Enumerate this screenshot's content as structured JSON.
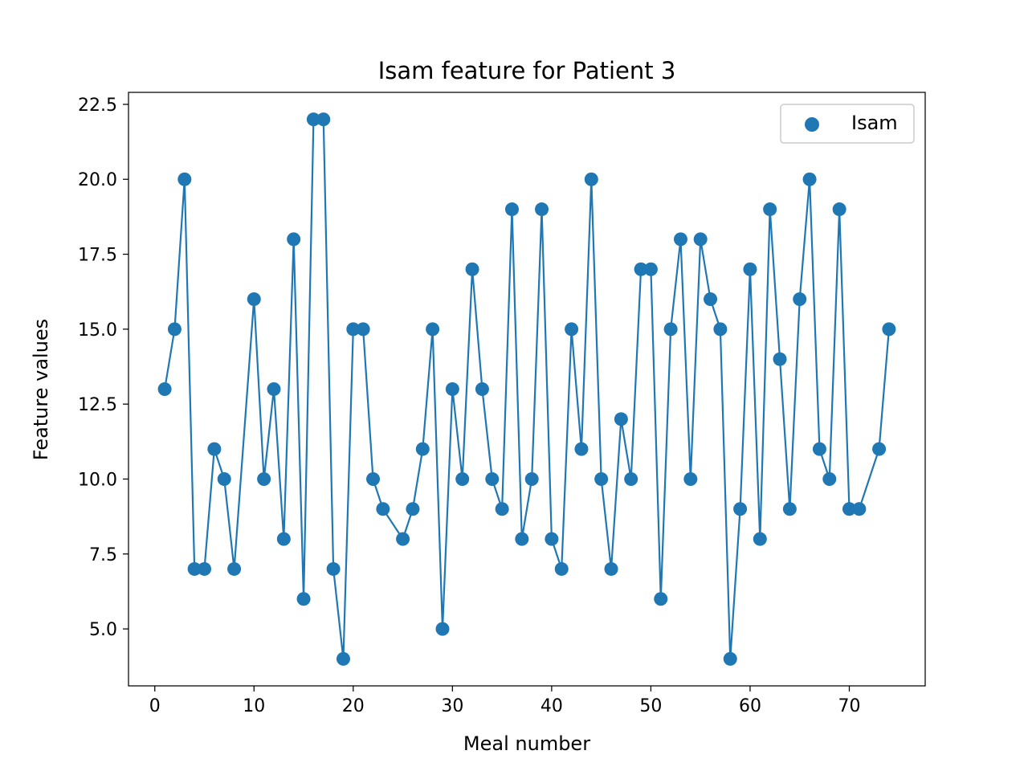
{
  "chart_data": {
    "type": "line",
    "title": "Isam feature for Patient 3",
    "xlabel": "Meal number",
    "ylabel": "Feature values",
    "xlim": [
      -2.65,
      77.65
    ],
    "ylim": [
      3.1,
      22.9
    ],
    "x_ticks": [
      0,
      10,
      20,
      30,
      40,
      50,
      60,
      70
    ],
    "x_tick_labels": [
      "0",
      "10",
      "20",
      "30",
      "40",
      "50",
      "60",
      "70"
    ],
    "y_ticks": [
      5.0,
      7.5,
      10.0,
      12.5,
      15.0,
      17.5,
      20.0,
      22.5
    ],
    "y_tick_labels": [
      "5.0",
      "7.5",
      "10.0",
      "12.5",
      "15.0",
      "17.5",
      "20.0",
      "22.5"
    ],
    "grid": false,
    "legend_position": "top-right",
    "series": [
      {
        "name": "Isam",
        "color": "#1f77b4",
        "marker": "circle",
        "line": true,
        "x": [
          1,
          2,
          3,
          4,
          5,
          6,
          7,
          8,
          10,
          11,
          12,
          13,
          14,
          15,
          16,
          17,
          18,
          19,
          20,
          21,
          22,
          23,
          25,
          26,
          27,
          28,
          29,
          30,
          31,
          32,
          33,
          34,
          35,
          36,
          37,
          38,
          39,
          40,
          41,
          42,
          43,
          44,
          45,
          46,
          47,
          48,
          49,
          50,
          51,
          52,
          53,
          54,
          55,
          56,
          57,
          58,
          59,
          60,
          61,
          62,
          63,
          64,
          65,
          66,
          67,
          68,
          69,
          70,
          71,
          73,
          74
        ],
        "y": [
          13,
          15,
          20,
          7,
          7,
          11,
          10,
          7,
          16,
          10,
          13,
          8,
          18,
          6,
          22,
          22,
          7,
          4,
          15,
          15,
          10,
          9,
          8,
          9,
          11,
          15,
          5,
          13,
          10,
          17,
          13,
          10,
          9,
          19,
          8,
          10,
          19,
          8,
          7,
          15,
          11,
          20,
          10,
          7,
          12,
          10,
          17,
          17,
          6,
          15,
          18,
          10,
          18,
          16,
          15,
          4,
          9,
          17,
          8,
          19,
          14,
          9,
          16,
          20,
          11,
          10,
          19,
          9,
          9,
          11,
          15
        ]
      }
    ]
  }
}
